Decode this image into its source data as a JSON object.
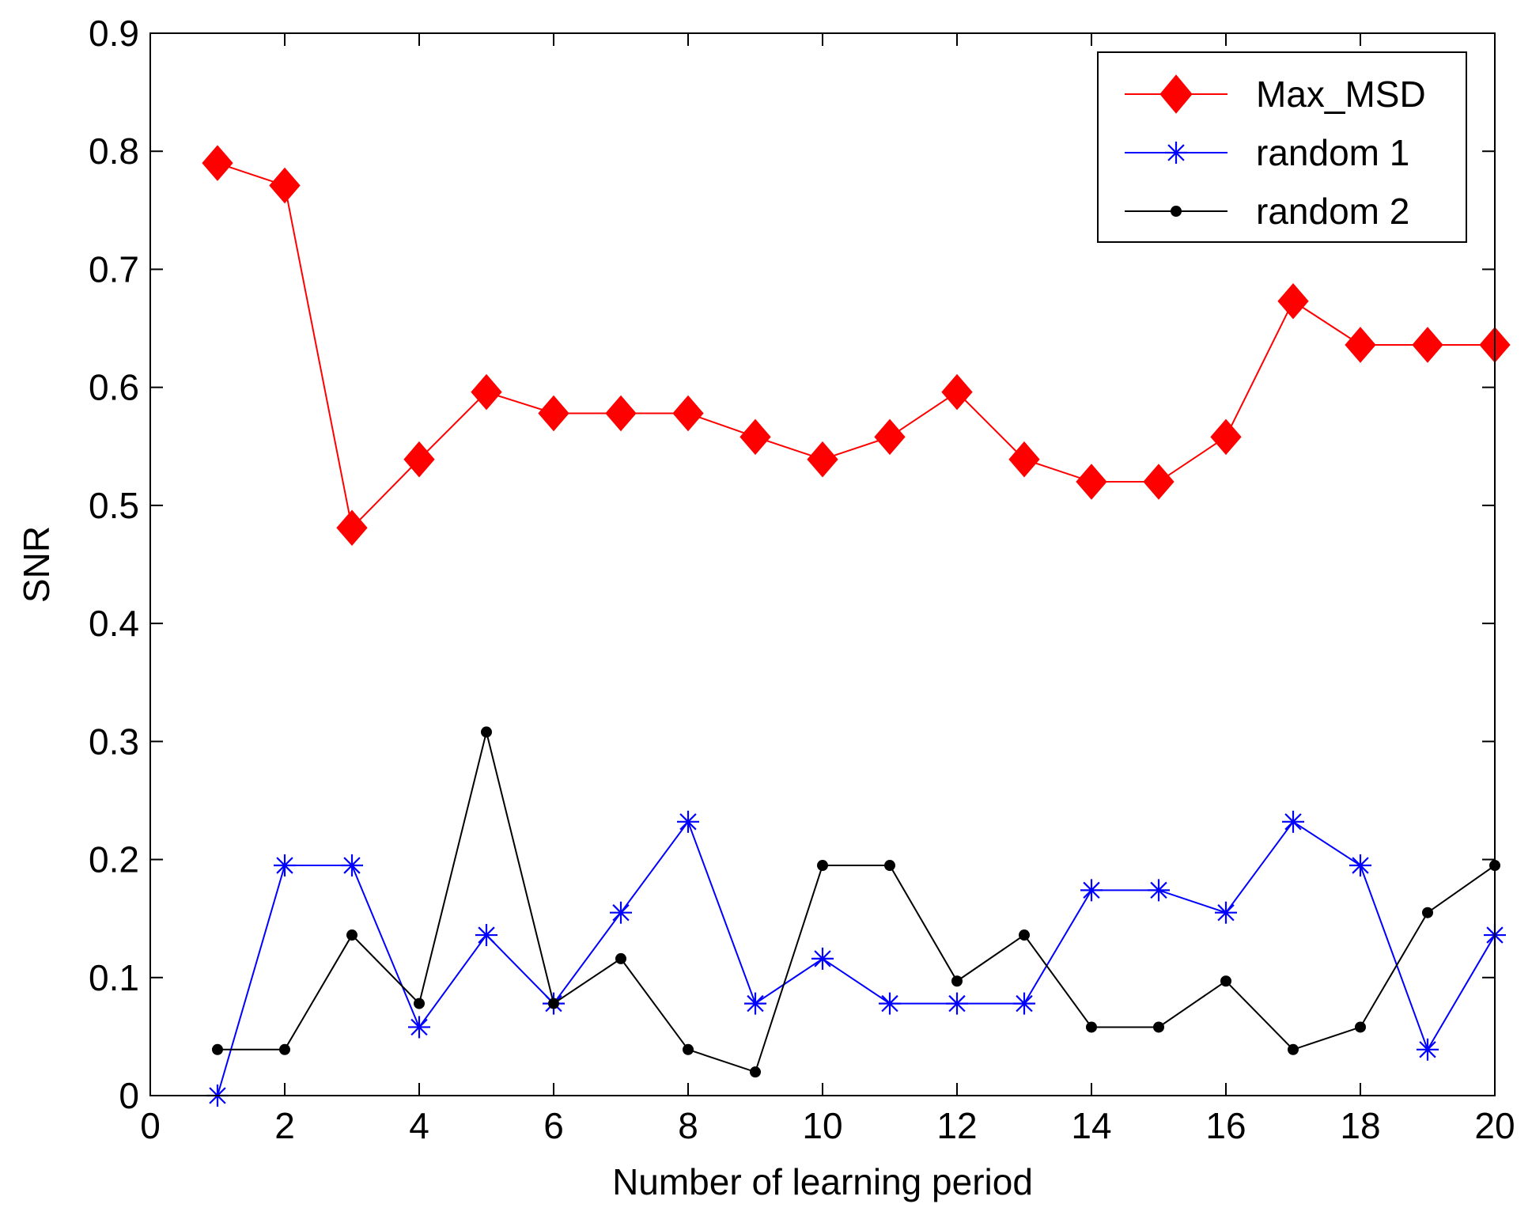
{
  "chart_data": {
    "type": "line",
    "title": "",
    "xlabel": "Number of learning period",
    "ylabel": "SNR",
    "xlim": [
      0,
      20
    ],
    "ylim": [
      0,
      0.9
    ],
    "xticks": [
      0,
      2,
      4,
      6,
      8,
      10,
      12,
      14,
      16,
      18,
      20
    ],
    "yticks": [
      0,
      0.1,
      0.2,
      0.3,
      0.4,
      0.5,
      0.6,
      0.7,
      0.8,
      0.9
    ],
    "grid": false,
    "legend_position": "top-right",
    "x": [
      1,
      2,
      3,
      4,
      5,
      6,
      7,
      8,
      9,
      10,
      11,
      12,
      13,
      14,
      15,
      16,
      17,
      18,
      19,
      20
    ],
    "series": [
      {
        "name": "Max_MSD",
        "color": "#ff0000",
        "marker": "diamond",
        "values": [
          0.79,
          0.771,
          0.481,
          0.539,
          0.596,
          0.578,
          0.578,
          0.578,
          0.558,
          0.539,
          0.558,
          0.596,
          0.539,
          0.52,
          0.52,
          0.558,
          0.673,
          0.636,
          0.636,
          0.636
        ]
      },
      {
        "name": "random 1",
        "color": "#0000ff",
        "marker": "asterisk",
        "values": [
          0.0,
          0.195,
          0.195,
          0.058,
          0.136,
          0.078,
          0.155,
          0.232,
          0.078,
          0.116,
          0.078,
          0.078,
          0.078,
          0.174,
          0.174,
          0.155,
          0.232,
          0.195,
          0.039,
          0.136
        ]
      },
      {
        "name": "random 2",
        "color": "#000000",
        "marker": "dot",
        "values": [
          0.039,
          0.039,
          0.136,
          0.078,
          0.308,
          0.078,
          0.116,
          0.039,
          0.02,
          0.195,
          0.195,
          0.097,
          0.136,
          0.058,
          0.058,
          0.097,
          0.039,
          0.058,
          0.155,
          0.195
        ]
      }
    ]
  }
}
